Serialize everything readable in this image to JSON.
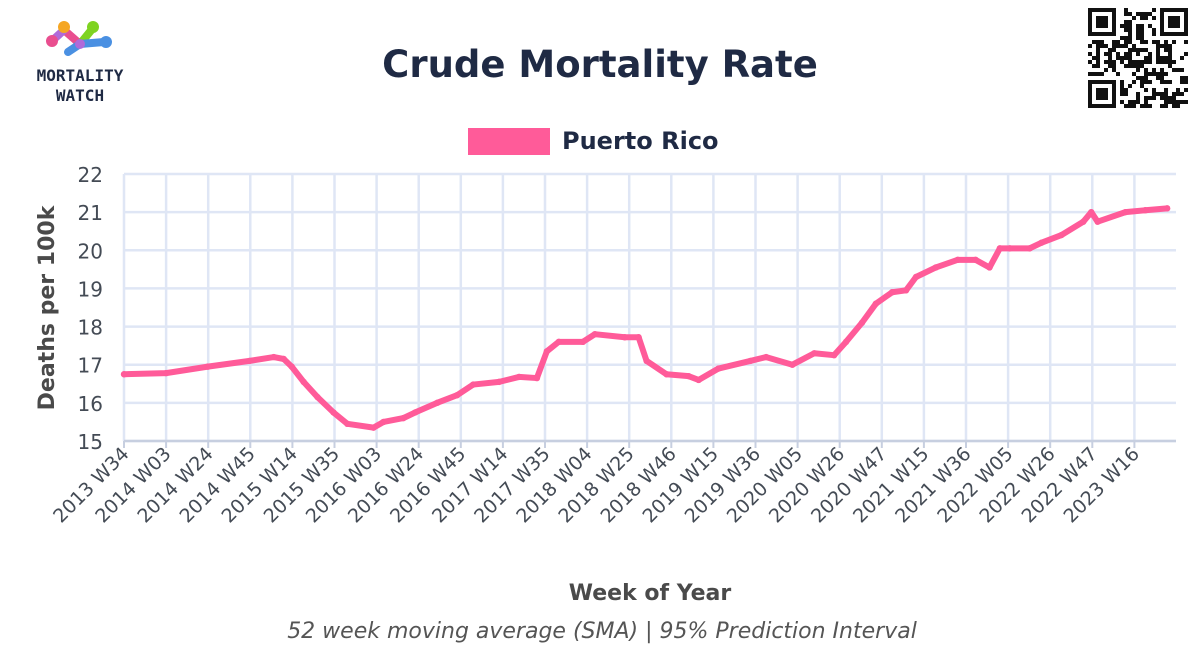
{
  "logo": {
    "line1": "MORTALITY",
    "line2": "WATCH",
    "colors": [
      "#f5a623",
      "#e94e8f",
      "#7ed321",
      "#4a90e2",
      "#b06ad9"
    ]
  },
  "qr_icon": "qr-code-icon",
  "chart_data": {
    "type": "line",
    "title": "Crude Mortality Rate",
    "subtitle": "52 week moving average (SMA) | 95% Prediction Interval",
    "xlabel": "Week of Year",
    "ylabel": "Deaths per 100k",
    "ylim": [
      15,
      22
    ],
    "yticks": [
      15,
      16,
      17,
      18,
      19,
      20,
      21,
      22
    ],
    "xticks": [
      "2013 W34",
      "2014 W03",
      "2014 W24",
      "2014 W45",
      "2015 W14",
      "2015 W35",
      "2016 W03",
      "2016 W24",
      "2016 W45",
      "2017 W14",
      "2017 W35",
      "2018 W04",
      "2018 W25",
      "2018 W46",
      "2019 W15",
      "2019 W36",
      "2020 W05",
      "2020 W26",
      "2020 W47",
      "2021 W15",
      "2021 W36",
      "2022 W05",
      "2022 W26",
      "2022 W47",
      "2023 W16"
    ],
    "grid": true,
    "legend_position": "top-center",
    "series": [
      {
        "name": "Puerto Rico",
        "color": "#ff5b99",
        "x": [
          "2013 W34",
          "2014 W03",
          "2014 W24",
          "2014 W45",
          "2015 W05",
          "2015 W10",
          "2015 W14",
          "2015 W20",
          "2015 W27",
          "2015 W35",
          "2015 W42",
          "2016 W03",
          "2016 W08",
          "2016 W18",
          "2016 W24",
          "2016 W35",
          "2016 W45",
          "2017 W01",
          "2017 W14",
          "2017 W24",
          "2017 W33",
          "2017 W38",
          "2017 W44",
          "2018 W04",
          "2018 W10",
          "2018 W25",
          "2018 W32",
          "2018 W36",
          "2018 W46",
          "2019 W05",
          "2019 W10",
          "2019 W20",
          "2019 W36",
          "2019 W44",
          "2020 W05",
          "2020 W16",
          "2020 W26",
          "2020 W32",
          "2020 W40",
          "2020 W47",
          "2021 W03",
          "2021 W10",
          "2021 W15",
          "2021 W25",
          "2021 W36",
          "2021 W45",
          "2021 W52",
          "2022 W05",
          "2022 W10",
          "2022 W20",
          "2022 W26",
          "2022 W36",
          "2022 W47",
          "2022 W51",
          "2023 W02",
          "2023 W16",
          "2023 W26",
          "2023 W37"
        ],
        "values": [
          16.75,
          16.78,
          16.95,
          17.1,
          17.2,
          17.15,
          16.95,
          16.55,
          16.15,
          15.75,
          15.45,
          15.35,
          15.5,
          15.6,
          15.75,
          16.0,
          16.2,
          16.48,
          16.55,
          16.68,
          16.65,
          17.35,
          17.6,
          17.6,
          17.8,
          17.72,
          17.72,
          17.1,
          16.75,
          16.7,
          16.6,
          16.9,
          17.1,
          17.2,
          17.0,
          17.3,
          17.25,
          17.6,
          18.1,
          18.6,
          18.9,
          18.95,
          19.3,
          19.55,
          19.75,
          19.75,
          19.55,
          20.05,
          20.05,
          20.05,
          20.2,
          20.4,
          20.75,
          21.0,
          20.75,
          21.0,
          21.05,
          21.1
        ]
      }
    ]
  }
}
